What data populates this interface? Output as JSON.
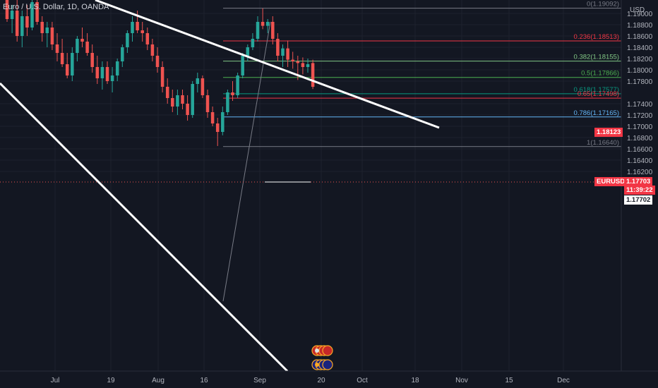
{
  "header": {
    "title": "Euro / U.S. Dollar, 1D, OANDA"
  },
  "price_axis": {
    "currency": "USD",
    "ticks": [
      "1.19000",
      "1.18800",
      "1.18600",
      "1.18400",
      "1.18200",
      "1.18000",
      "1.17800",
      "1.17400",
      "1.17200",
      "1.17000",
      "1.16800",
      "1.16600",
      "1.16400",
      "1.16200"
    ]
  },
  "time_axis": {
    "labels": [
      "Jul",
      "19",
      "Aug",
      "16",
      "Sep",
      "20",
      "Oct",
      "18",
      "Nov",
      "15",
      "Dec"
    ]
  },
  "fib_levels": [
    {
      "label": "0(1.19092)",
      "price": 1.19092,
      "color": "#787b86"
    },
    {
      "label": "0.236(1.18513)",
      "price": 1.18513,
      "color": "#f23645"
    },
    {
      "label": "0.382(1.18155)",
      "price": 1.18155,
      "color": "#81c784"
    },
    {
      "label": "0.5(1.17866)",
      "price": 1.17866,
      "color": "#4caf50"
    },
    {
      "label": "0.618(1.17577)",
      "price": 1.17577,
      "color": "#089981"
    },
    {
      "label": "0.65(1.17498)",
      "price": 1.17498,
      "color": "#f23645"
    },
    {
      "label": "0.786(1.17165)",
      "price": 1.17165,
      "color": "#64b5f6"
    },
    {
      "label": "1(1.16640)",
      "price": 1.1664,
      "color": "#787b86"
    }
  ],
  "price_tags": {
    "level_price": "1.18123",
    "symbol": "EURUSD",
    "last_price": "1.17703",
    "countdown": "11:39:22",
    "crosshair_price": "1.17702"
  },
  "colors": {
    "background": "#131722",
    "up": "#26a69a",
    "down": "#ef5350",
    "trendline": "#ffffff",
    "grid": "#1e222d"
  },
  "chart_data": {
    "type": "candlestick",
    "ylim": [
      1.1605,
      1.1935
    ],
    "candles": [
      [
        1.1925,
        1.194,
        1.1885,
        1.189
      ],
      [
        1.189,
        1.1915,
        1.1865,
        1.1905
      ],
      [
        1.1905,
        1.1925,
        1.185,
        1.186
      ],
      [
        1.186,
        1.1905,
        1.184,
        1.1895
      ],
      [
        1.1895,
        1.1915,
        1.186,
        1.1875
      ],
      [
        1.1875,
        1.193,
        1.187,
        1.192
      ],
      [
        1.192,
        1.1935,
        1.188,
        1.1885
      ],
      [
        1.1885,
        1.1895,
        1.185,
        1.1865
      ],
      [
        1.1865,
        1.1885,
        1.184,
        1.1875
      ],
      [
        1.1875,
        1.1885,
        1.1835,
        1.1845
      ],
      [
        1.1845,
        1.1865,
        1.1815,
        1.183
      ],
      [
        1.183,
        1.1855,
        1.1805,
        1.181
      ],
      [
        1.181,
        1.183,
        1.1785,
        1.179
      ],
      [
        1.179,
        1.184,
        1.178,
        1.183
      ],
      [
        1.183,
        1.186,
        1.1815,
        1.1855
      ],
      [
        1.1855,
        1.1875,
        1.184,
        1.185
      ],
      [
        1.185,
        1.1865,
        1.1825,
        1.183
      ],
      [
        1.183,
        1.1845,
        1.1795,
        1.1805
      ],
      [
        1.1805,
        1.1825,
        1.1775,
        1.1785
      ],
      [
        1.1785,
        1.1815,
        1.1765,
        1.1805
      ],
      [
        1.1805,
        1.1815,
        1.1775,
        1.178
      ],
      [
        1.178,
        1.1805,
        1.176,
        1.179
      ],
      [
        1.179,
        1.182,
        1.178,
        1.1815
      ],
      [
        1.1815,
        1.1845,
        1.1805,
        1.184
      ],
      [
        1.184,
        1.187,
        1.183,
        1.1865
      ],
      [
        1.1865,
        1.1895,
        1.185,
        1.1885
      ],
      [
        1.1885,
        1.1905,
        1.1865,
        1.187
      ],
      [
        1.187,
        1.1885,
        1.185,
        1.1865
      ],
      [
        1.1865,
        1.1875,
        1.1835,
        1.1845
      ],
      [
        1.1845,
        1.1855,
        1.1815,
        1.1825
      ],
      [
        1.1825,
        1.184,
        1.1795,
        1.1805
      ],
      [
        1.1805,
        1.1815,
        1.176,
        1.177
      ],
      [
        1.177,
        1.1785,
        1.174,
        1.175
      ],
      [
        1.175,
        1.1765,
        1.1725,
        1.1735
      ],
      [
        1.1735,
        1.1765,
        1.172,
        1.1755
      ],
      [
        1.1755,
        1.1765,
        1.173,
        1.174
      ],
      [
        1.174,
        1.1755,
        1.171,
        1.172
      ],
      [
        1.172,
        1.178,
        1.1715,
        1.1775
      ],
      [
        1.1775,
        1.1795,
        1.176,
        1.1785
      ],
      [
        1.1785,
        1.179,
        1.175,
        1.1755
      ],
      [
        1.1755,
        1.1765,
        1.1715,
        1.1725
      ],
      [
        1.1725,
        1.1735,
        1.17,
        1.1705
      ],
      [
        1.1705,
        1.1715,
        1.1665,
        1.169
      ],
      [
        1.169,
        1.1735,
        1.1684,
        1.1725
      ],
      [
        1.1725,
        1.1765,
        1.172,
        1.176
      ],
      [
        1.176,
        1.178,
        1.1745,
        1.1755
      ],
      [
        1.1755,
        1.1795,
        1.175,
        1.179
      ],
      [
        1.179,
        1.183,
        1.1785,
        1.1825
      ],
      [
        1.1825,
        1.1845,
        1.1815,
        1.184
      ],
      [
        1.184,
        1.1865,
        1.1835,
        1.1855
      ],
      [
        1.1855,
        1.1895,
        1.185,
        1.1885
      ],
      [
        1.1885,
        1.1909,
        1.1872,
        1.1878
      ],
      [
        1.1878,
        1.189,
        1.1865,
        1.1885
      ],
      [
        1.1885,
        1.1895,
        1.1845,
        1.1855
      ],
      [
        1.1855,
        1.1865,
        1.1815,
        1.1825
      ],
      [
        1.1825,
        1.1845,
        1.1805,
        1.1838
      ],
      [
        1.1838,
        1.1852,
        1.1805,
        1.1818
      ],
      [
        1.1818,
        1.1832,
        1.1802,
        1.1815
      ],
      [
        1.1815,
        1.1825,
        1.1782,
        1.1812
      ],
      [
        1.1812,
        1.1822,
        1.1792,
        1.1805
      ],
      [
        1.1805,
        1.182,
        1.1795,
        1.181
      ],
      [
        1.1812,
        1.1818,
        1.1766,
        1.177
      ]
    ]
  }
}
